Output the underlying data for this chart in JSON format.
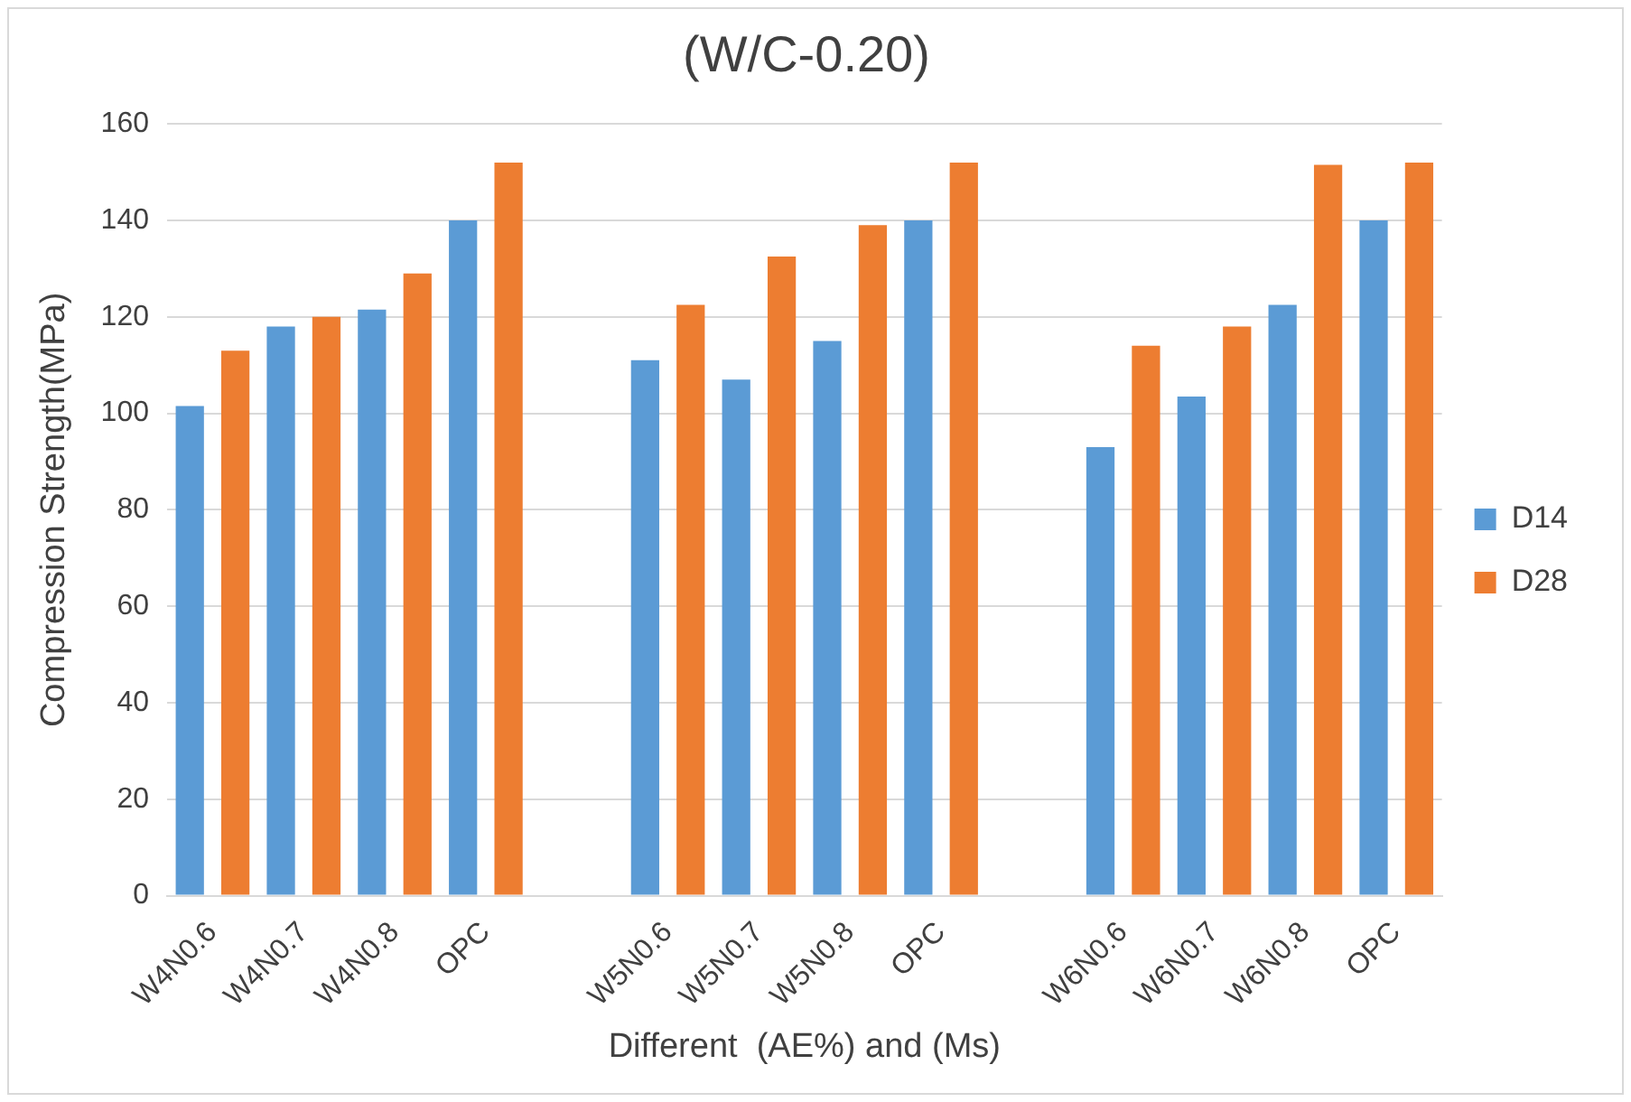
{
  "chart_data": {
    "type": "bar",
    "title": "(W/C-0.20)",
    "xlabel": "Different  (AE%) and (Ms)",
    "ylabel": "Compression Strength(MPa)",
    "categories": [
      "W4N0.6",
      "W4N0.7",
      "W4N0.8",
      "OPC",
      null,
      "W5N0.6",
      "W5N0.7",
      "W5N0.8",
      "OPC",
      null,
      "W6N0.6",
      "W6N0.7",
      "W6N0.8",
      "OPC"
    ],
    "series": [
      {
        "name": "D14",
        "color": "#5b9bd5",
        "values": [
          101.5,
          118,
          121.5,
          140,
          null,
          111,
          107,
          115,
          140,
          null,
          93,
          103.5,
          122.5,
          140
        ]
      },
      {
        "name": "D28",
        "color": "#ed7d31",
        "values": [
          113,
          120,
          129,
          152,
          null,
          122.5,
          132.5,
          139,
          152,
          null,
          114,
          118,
          151.5,
          152
        ]
      }
    ],
    "ylim": [
      0,
      160
    ],
    "yticks": [
      0,
      20,
      40,
      60,
      80,
      100,
      120,
      140,
      160
    ],
    "grid": "y",
    "legend": "right"
  }
}
